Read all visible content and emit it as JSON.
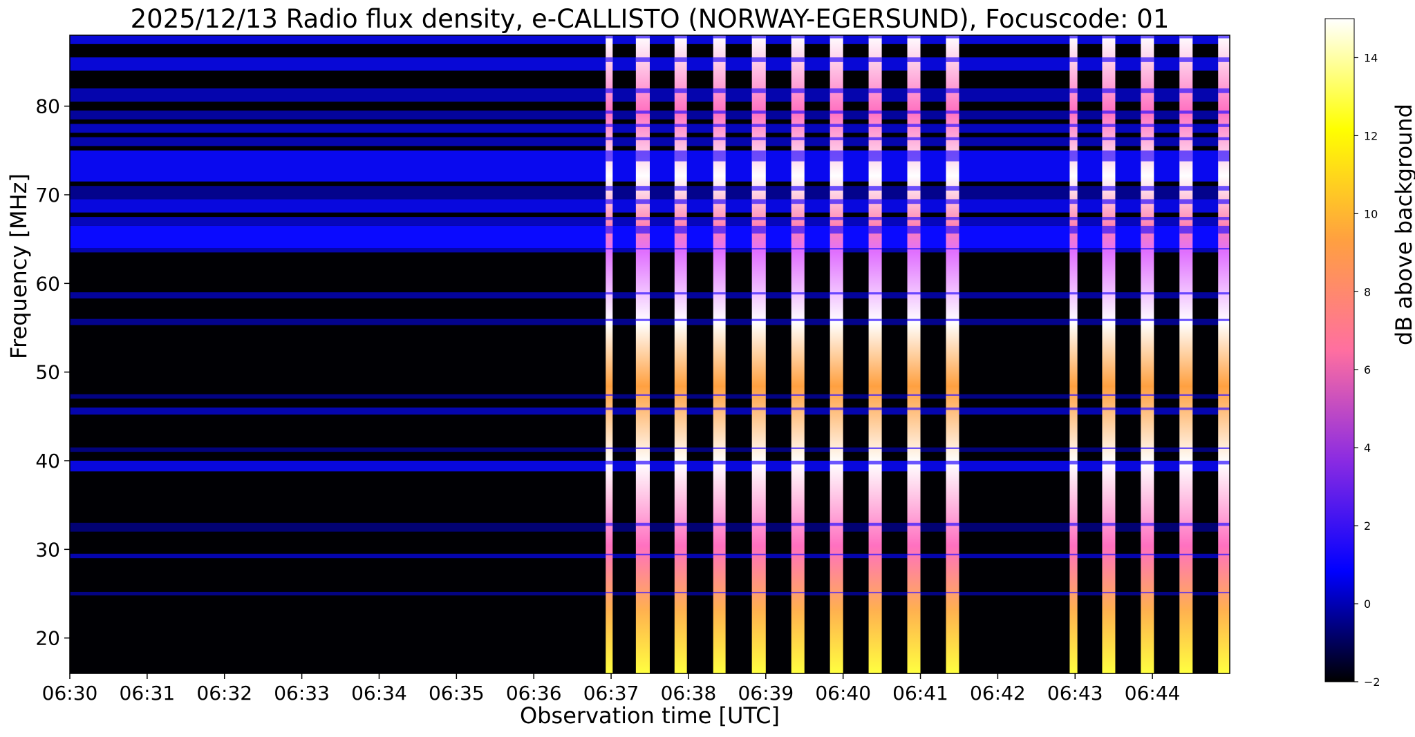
{
  "chart_data": {
    "type": "heatmap",
    "title": "2025/12/13  Radio flux density, e-CALLISTO (NORWAY-EGERSUND), Focuscode: 01",
    "xlabel": "Observation time [UTC]",
    "ylabel": "Frequency [MHz]",
    "x_tick_labels": [
      "06:30",
      "06:31",
      "06:32",
      "06:33",
      "06:34",
      "06:35",
      "06:36",
      "06:37",
      "06:38",
      "06:39",
      "06:40",
      "06:41",
      "06:42",
      "06:43",
      "06:44"
    ],
    "x_range_minutes": [
      0,
      15
    ],
    "y_ticks": [
      20,
      30,
      40,
      50,
      60,
      70,
      80
    ],
    "y_range_mhz": [
      16,
      88
    ],
    "colorbar": {
      "label": "dB above background",
      "range": [
        -2,
        15
      ],
      "ticks": [
        -2,
        0,
        2,
        4,
        6,
        8,
        10,
        12,
        14
      ],
      "colormap": "gnuplot2",
      "stops": [
        "#000000",
        "#0000ff",
        "#8a2be2",
        "#ff6fa0",
        "#ffa040",
        "#ffff00",
        "#ffffff"
      ]
    },
    "background_band_mhz": [
      [
        87.0,
        88.0,
        1.5
      ],
      [
        84.0,
        85.5,
        1.5
      ],
      [
        80.5,
        82.0,
        1.0
      ],
      [
        78.5,
        79.5,
        0.8
      ],
      [
        77.0,
        78.0,
        1.2
      ],
      [
        75.5,
        76.5,
        1.0
      ],
      [
        71.5,
        75.0,
        1.8
      ],
      [
        69.5,
        71.0,
        0.6
      ],
      [
        68.0,
        69.5,
        1.6
      ],
      [
        66.5,
        67.5,
        1.2
      ],
      [
        64.0,
        66.5,
        2.0
      ],
      [
        63.5,
        64.0,
        1.0
      ],
      [
        58.3,
        59.0,
        0.8
      ],
      [
        55.3,
        56.0,
        0.6
      ],
      [
        47.0,
        47.5,
        0.5
      ],
      [
        45.2,
        46.0,
        1.0
      ],
      [
        41.0,
        41.5,
        0.4
      ],
      [
        38.8,
        40.0,
        1.6
      ],
      [
        32.0,
        33.0,
        0.3
      ],
      [
        29.0,
        29.5,
        1.0
      ],
      [
        24.8,
        25.2,
        0.5
      ]
    ],
    "burst_intervals_minutes": [
      [
        6.93,
        7.02
      ],
      [
        7.32,
        7.5
      ],
      [
        7.82,
        7.98
      ],
      [
        8.32,
        8.48
      ],
      [
        8.82,
        9.0
      ],
      [
        9.33,
        9.5
      ],
      [
        9.83,
        10.0
      ],
      [
        10.33,
        10.5
      ],
      [
        10.83,
        11.0
      ],
      [
        11.33,
        11.5
      ],
      [
        12.93,
        13.03
      ],
      [
        13.35,
        13.52
      ],
      [
        13.85,
        14.02
      ],
      [
        14.35,
        14.52
      ],
      [
        14.85,
        15.0
      ]
    ]
  }
}
